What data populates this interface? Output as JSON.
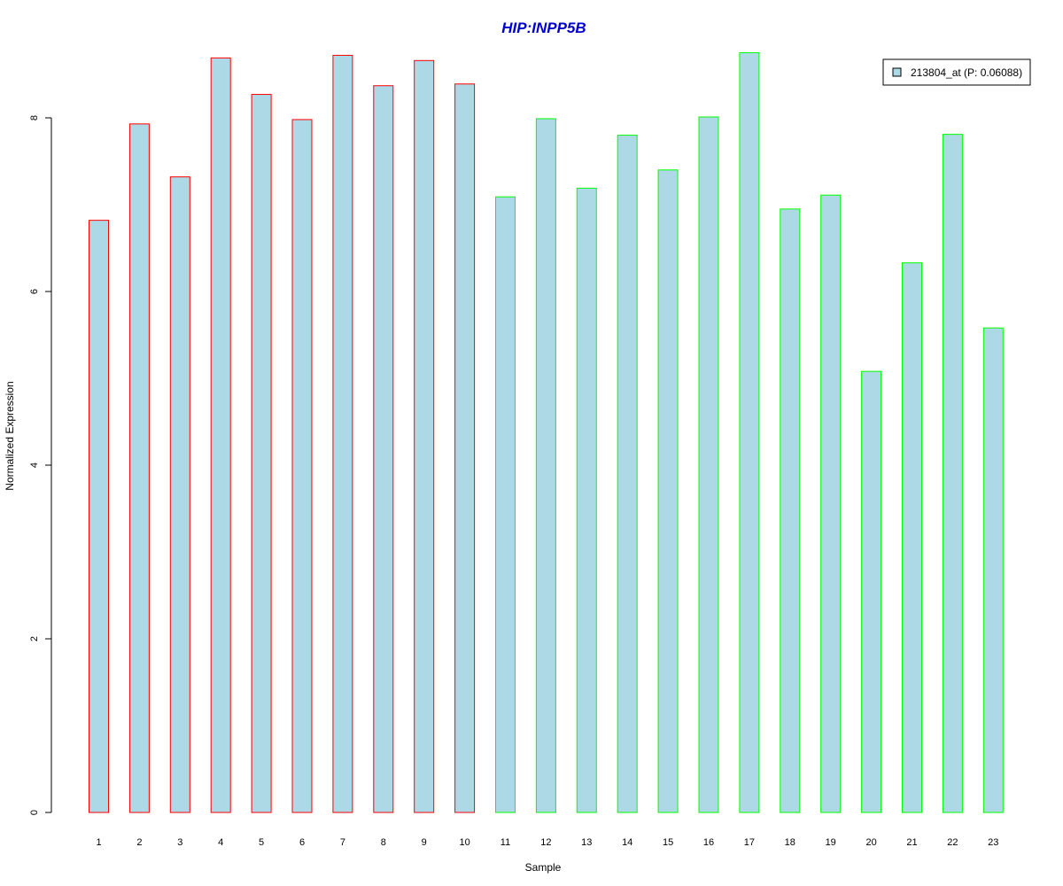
{
  "chart_data": {
    "type": "bar",
    "title": "HIP:INPP5B",
    "xlabel": "Sample",
    "ylabel": "Normalized Expression",
    "categories": [
      "1",
      "2",
      "3",
      "4",
      "5",
      "6",
      "7",
      "8",
      "9",
      "10",
      "11",
      "12",
      "13",
      "14",
      "15",
      "16",
      "17",
      "18",
      "19",
      "20",
      "21",
      "22",
      "23"
    ],
    "series": [
      {
        "name": "213804_at (P: 0.06088)",
        "values": [
          6.82,
          7.93,
          7.32,
          8.69,
          8.27,
          7.98,
          8.72,
          8.37,
          8.66,
          8.39,
          7.09,
          7.99,
          7.19,
          7.8,
          7.4,
          8.01,
          8.75,
          6.95,
          7.11,
          5.08,
          6.33,
          7.81,
          5.58
        ],
        "fill": "#add8e6",
        "border_colors": [
          "#ff0000",
          "#ff0000",
          "#ff0000",
          "#ff0000",
          "#ff0000",
          "#ff0000",
          "#ff0000",
          "#ff0000",
          "#ff0000",
          "#ff0000",
          "#00ff00",
          "#00ff00",
          "#00ff00",
          "#00ff00",
          "#00ff00",
          "#00ff00",
          "#00ff00",
          "#00ff00",
          "#00ff00",
          "#00ff00",
          "#00ff00",
          "#00ff00",
          "#00ff00"
        ]
      }
    ],
    "yticks": [
      0,
      2,
      4,
      6,
      8
    ],
    "ylim": [
      0,
      8.75
    ],
    "grid": false,
    "legend": "top-right",
    "colors": {
      "title": "#0000cc",
      "bar_fill": "#add8e6",
      "group1_border": "#ff0000",
      "group2_border": "#00ff00"
    }
  }
}
